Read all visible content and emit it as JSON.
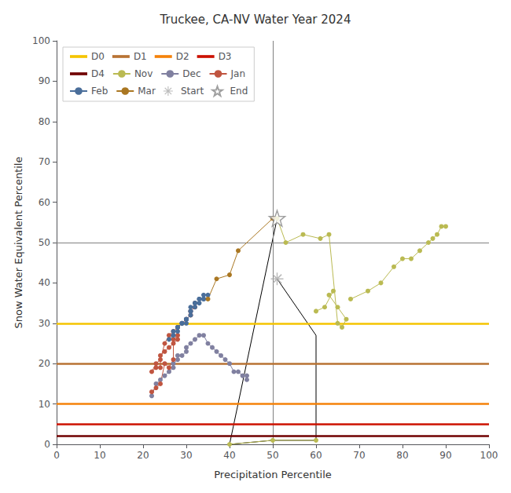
{
  "chart_data": {
    "type": "line",
    "title": "Truckee, CA-NV Water Year 2024",
    "xlabel": "Precipitation Percentile",
    "ylabel": "Snow Water Equivalent Percentile",
    "xlim": [
      0,
      100
    ],
    "ylim": [
      0,
      100
    ],
    "xticks": [
      0,
      10,
      20,
      30,
      40,
      50,
      60,
      70,
      80,
      90,
      100
    ],
    "yticks": [
      0,
      10,
      20,
      30,
      40,
      50,
      60,
      70,
      80,
      90,
      100
    ],
    "grid": false,
    "legend": "upper left",
    "reference_lines": [
      {
        "x": 50,
        "color": "#808080"
      },
      {
        "y": 50,
        "color": "#808080"
      }
    ],
    "series": [
      {
        "name": "D0",
        "type": "hline",
        "color": "#F5C400",
        "values": [
          30
        ]
      },
      {
        "name": "D1",
        "type": "hline",
        "color": "#B87333",
        "values": [
          20
        ]
      },
      {
        "name": "D2",
        "type": "hline",
        "color": "#F5820A",
        "values": [
          10
        ]
      },
      {
        "name": "D3",
        "type": "hline",
        "color": "#CC1100",
        "values": [
          5
        ]
      },
      {
        "name": "D4",
        "type": "hline",
        "color": "#700000",
        "values": [
          2
        ]
      },
      {
        "type": "line",
        "color": "#000000",
        "marker": "none",
        "line_style": "solid",
        "x": [
          51,
          40,
          50,
          60,
          60,
          51
        ],
        "values": [
          56,
          0,
          1,
          1,
          27,
          41
        ]
      },
      {
        "name": "Nov",
        "type": "line",
        "color": "#BABA52",
        "marker": "circle",
        "line_style": "solid",
        "x": [
          51,
          53,
          57,
          61,
          63,
          65,
          66,
          67,
          65,
          63,
          64,
          62,
          60,
          null,
          68,
          72,
          75,
          78,
          80,
          82,
          84,
          86,
          87,
          88,
          89,
          90,
          null,
          40,
          50,
          60
        ],
        "values": [
          56,
          50,
          52,
          51,
          52,
          30,
          29,
          31,
          34,
          37,
          38,
          34,
          33,
          null,
          36,
          38,
          40,
          44,
          46,
          46,
          48,
          50,
          51,
          52,
          54,
          54,
          null,
          0,
          1,
          1
        ]
      },
      {
        "name": "Dec",
        "type": "line",
        "color": "#8080A0",
        "marker": "circle",
        "line_style": "solid",
        "x": [
          22,
          23,
          24,
          25,
          26,
          27,
          27,
          28,
          28,
          29,
          30,
          30,
          31,
          32,
          33,
          34,
          35,
          36,
          37,
          38,
          39,
          40,
          41,
          42,
          43,
          44,
          44
        ],
        "values": [
          12,
          15,
          16,
          17,
          18,
          19,
          20,
          21,
          22,
          22,
          23,
          24,
          25,
          26,
          27,
          27,
          25,
          24,
          23,
          22,
          21,
          20,
          18,
          18,
          17,
          17,
          16
        ]
      },
      {
        "name": "Jan",
        "type": "line",
        "color": "#C05540",
        "marker": "circle",
        "line_style": "solid",
        "x": [
          22,
          23,
          24,
          25,
          26,
          27,
          27,
          28,
          28,
          27,
          26,
          25,
          24,
          24,
          23,
          22,
          23,
          24,
          25,
          26,
          27,
          28,
          29,
          30,
          31,
          31,
          32,
          32
        ],
        "values": [
          13,
          14,
          15,
          20,
          19,
          21,
          26,
          27,
          26,
          25,
          24,
          23,
          22,
          19,
          19,
          18,
          20,
          21,
          25,
          27,
          28,
          29,
          30,
          31,
          32,
          33,
          34,
          35
        ]
      },
      {
        "name": "Feb",
        "type": "line",
        "color": "#4A6E9A",
        "marker": "circle",
        "line_style": "solid",
        "x": [
          26,
          27,
          27,
          28,
          28,
          28,
          29,
          29,
          29,
          30,
          30,
          30,
          30,
          31,
          31,
          31,
          31,
          32,
          32,
          32,
          33,
          33,
          33,
          34,
          34,
          34,
          35
        ],
        "values": [
          26,
          27,
          28,
          28,
          29,
          29,
          30,
          30,
          30,
          30,
          31,
          31,
          31,
          32,
          33,
          33,
          34,
          34,
          35,
          35,
          35,
          36,
          36,
          36,
          36,
          37,
          37
        ]
      },
      {
        "name": "Mar",
        "type": "line",
        "color": "#AA7722",
        "marker": "circle",
        "line_style": "solid",
        "x": [
          35,
          37,
          40,
          42,
          50
        ],
        "values": [
          36,
          41,
          42,
          48,
          56
        ]
      },
      {
        "name": "Start",
        "type": "scatter",
        "color": "#AAAAAA",
        "marker": "cross",
        "x": [
          51
        ],
        "values": [
          41
        ]
      },
      {
        "name": "End",
        "type": "scatter",
        "color": "#FFFFFF",
        "marker": "star",
        "x": [
          51
        ],
        "values": [
          56
        ]
      }
    ]
  }
}
